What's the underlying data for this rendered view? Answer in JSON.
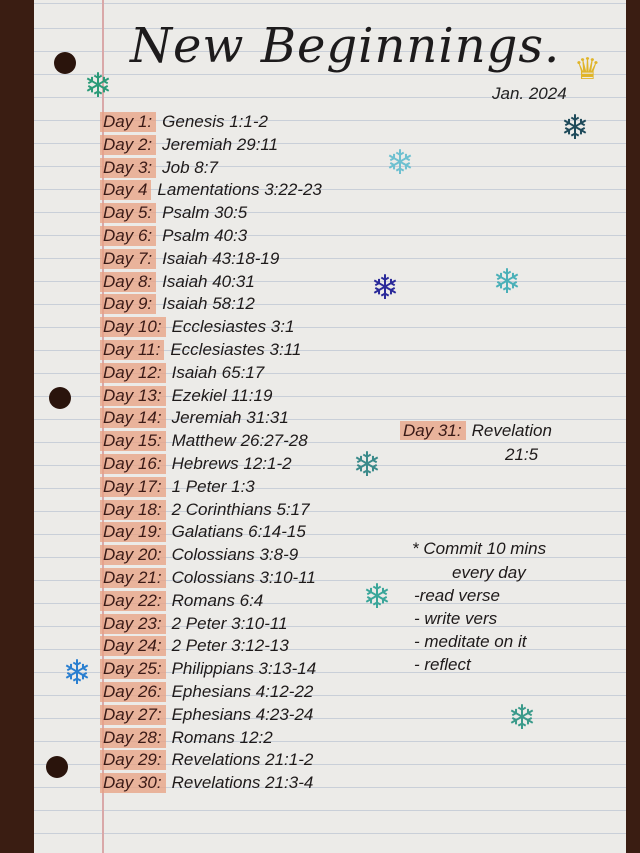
{
  "title": "New Beginnings.",
  "date": "Jan. 2024",
  "readings": [
    {
      "day": "Day 1:",
      "verse": "Genesis 1:1-2"
    },
    {
      "day": "Day 2:",
      "verse": "Jeremiah 29:11"
    },
    {
      "day": "Day 3:",
      "verse": "Job 8:7"
    },
    {
      "day": "Day 4",
      "verse": "Lamentations 3:22-23"
    },
    {
      "day": "Day 5:",
      "verse": "Psalm 30:5"
    },
    {
      "day": "Day 6:",
      "verse": "Psalm 40:3"
    },
    {
      "day": "Day 7:",
      "verse": "Isaiah 43:18-19"
    },
    {
      "day": "Day 8:",
      "verse": "Isaiah 40:31"
    },
    {
      "day": "Day 9:",
      "verse": "Isaiah 58:12"
    },
    {
      "day": "Day 10:",
      "verse": "Ecclesiastes 3:1"
    },
    {
      "day": "Day 11:",
      "verse": "Ecclesiastes 3:11"
    },
    {
      "day": "Day 12:",
      "verse": "Isaiah 65:17"
    },
    {
      "day": "Day 13:",
      "verse": "Ezekiel 11:19"
    },
    {
      "day": "Day 14:",
      "verse": "Jeremiah 31:31"
    },
    {
      "day": "Day 15:",
      "verse": "Matthew 26:27-28"
    },
    {
      "day": "Day 16:",
      "verse": "Hebrews 12:1-2"
    },
    {
      "day": "Day 17:",
      "verse": "1 Peter 1:3"
    },
    {
      "day": "Day 18:",
      "verse": "2 Corinthians 5:17"
    },
    {
      "day": "Day 19:",
      "verse": "Galatians 6:14-15"
    },
    {
      "day": "Day 20:",
      "verse": "Colossians 3:8-9"
    },
    {
      "day": "Day 21:",
      "verse": "Colossians 3:10-11"
    },
    {
      "day": "Day 22:",
      "verse": "Romans 6:4"
    },
    {
      "day": "Day 23:",
      "verse": "2 Peter 3:10-11"
    },
    {
      "day": "Day 24:",
      "verse": "2 Peter 3:12-13"
    },
    {
      "day": "Day 25:",
      "verse": "Philippians 3:13-14"
    },
    {
      "day": "Day 26:",
      "verse": "Ephesians 4:12-22"
    },
    {
      "day": "Day 27:",
      "verse": "Ephesians 4:23-24"
    },
    {
      "day": "Day 28:",
      "verse": "Romans 12:2"
    },
    {
      "day": "Day 29:",
      "verse": "Revelations 21:1-2"
    },
    {
      "day": "Day 30:",
      "verse": "Revelations 21:3-4"
    }
  ],
  "day31": {
    "day": "Day 31:",
    "verse_line1": "Revelation",
    "verse_line2": "21:5"
  },
  "notes": {
    "heading_line1": "* Commit 10 mins",
    "heading_line2": "every day",
    "items": [
      "-read verse",
      "- write vers",
      "- meditate on it",
      "- reflect"
    ]
  },
  "decorations": {
    "icons": [
      "snowflake-icon",
      "crown-icon"
    ],
    "colors": {
      "highlight": "#e8a082",
      "teal": "#3aa69a",
      "blue": "#2a7fd0",
      "navy": "#2a2a9a",
      "crown": "#e0b52a"
    }
  }
}
